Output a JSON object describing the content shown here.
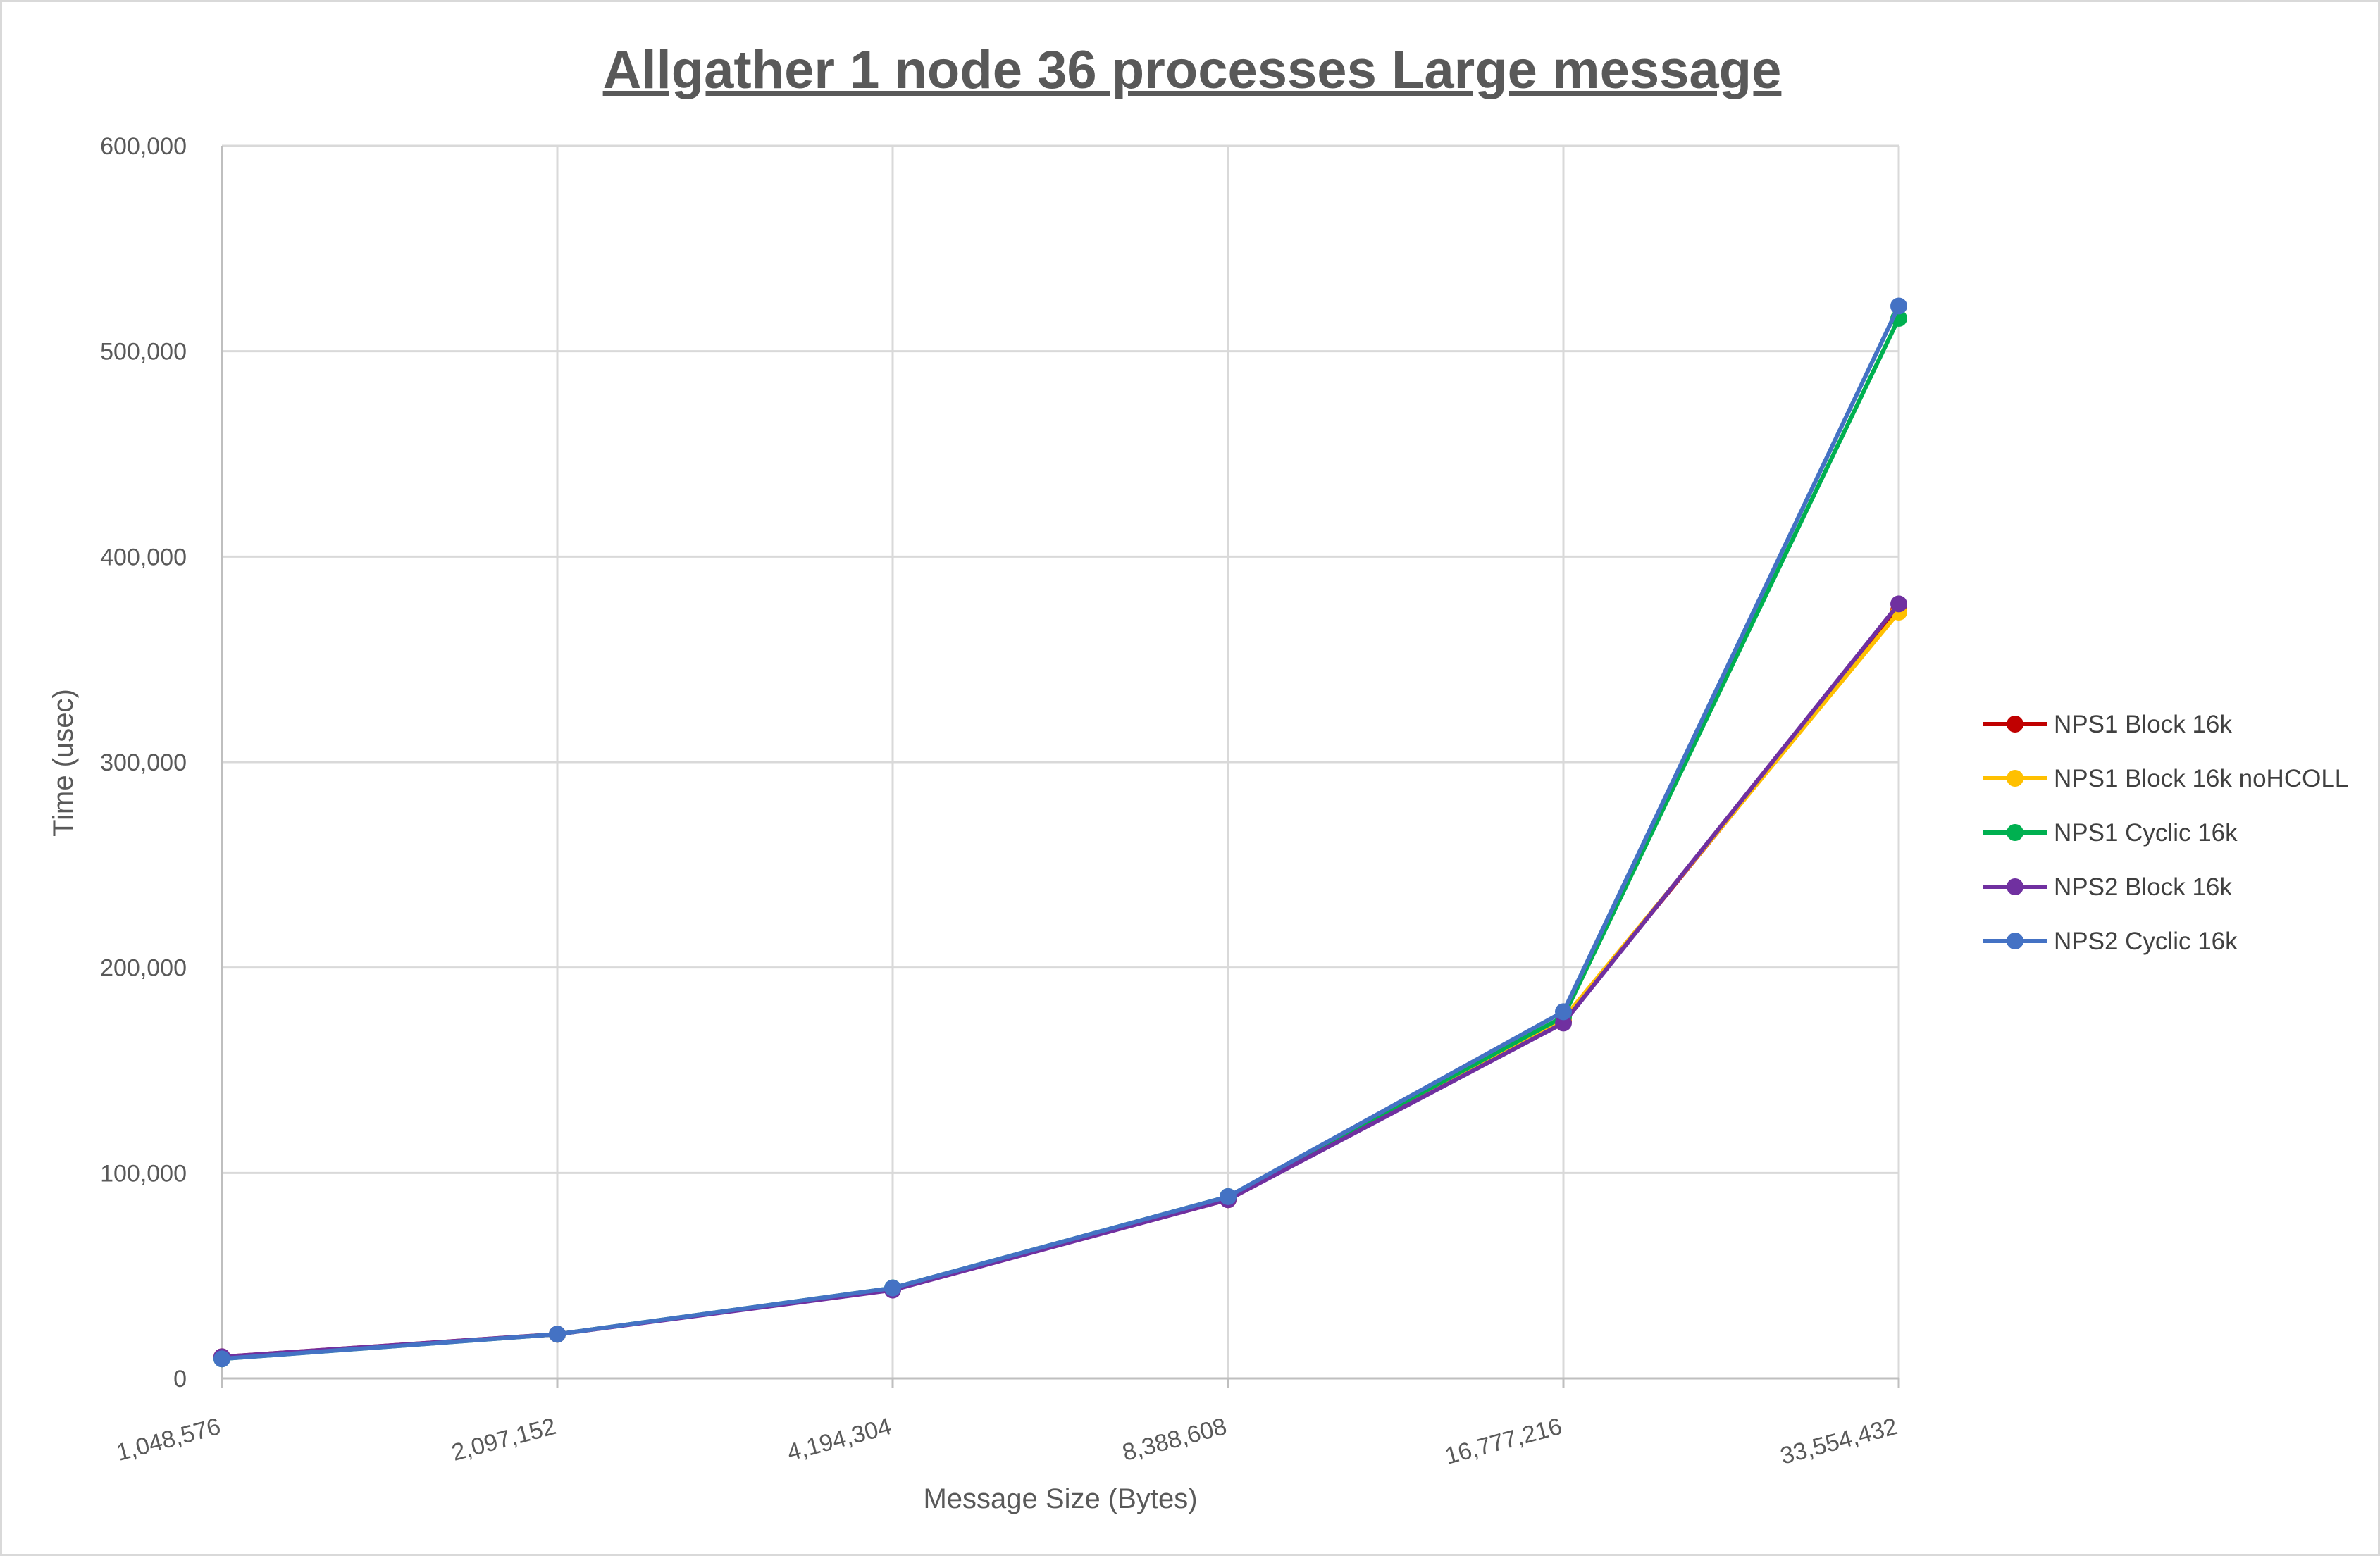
{
  "chart_data": {
    "type": "line",
    "title": "Allgather 1 node 36 processes Large message",
    "xlabel": "Message Size (Bytes)",
    "ylabel": "Time (usec)",
    "categories": [
      "1,048,576",
      "2,097,152",
      "4,194,304",
      "8,388,608",
      "16,777,216",
      "33,554,432"
    ],
    "ylim": [
      0,
      600000
    ],
    "yticks": [
      {
        "value": 0,
        "label": "0"
      },
      {
        "value": 100000,
        "label": "100,000"
      },
      {
        "value": 200000,
        "label": "200,000"
      },
      {
        "value": 300000,
        "label": "300,000"
      },
      {
        "value": 400000,
        "label": "400,000"
      },
      {
        "value": 500000,
        "label": "500,000"
      },
      {
        "value": 600000,
        "label": "600,000"
      }
    ],
    "grid": true,
    "legend_position": "right",
    "series": [
      {
        "name": "NPS1 Block 16k",
        "color": "#c00000",
        "values": [
          10500,
          21500,
          43500,
          87000,
          174000,
          374000
        ]
      },
      {
        "name": "NPS1 Block 16k noHCOLL",
        "color": "#ffc000",
        "values": [
          10000,
          21500,
          43500,
          87500,
          175000,
          373000
        ]
      },
      {
        "name": "NPS1 Cyclic 16k",
        "color": "#00b050",
        "values": [
          9500,
          21500,
          44000,
          88500,
          176000,
          516000
        ]
      },
      {
        "name": "NPS2 Block 16k",
        "color": "#7030a0",
        "values": [
          10500,
          21500,
          43000,
          87000,
          173000,
          377000
        ]
      },
      {
        "name": "NPS2 Cyclic 16k",
        "color": "#4472c4",
        "values": [
          9500,
          21500,
          44000,
          88500,
          178500,
          522000
        ]
      }
    ]
  }
}
